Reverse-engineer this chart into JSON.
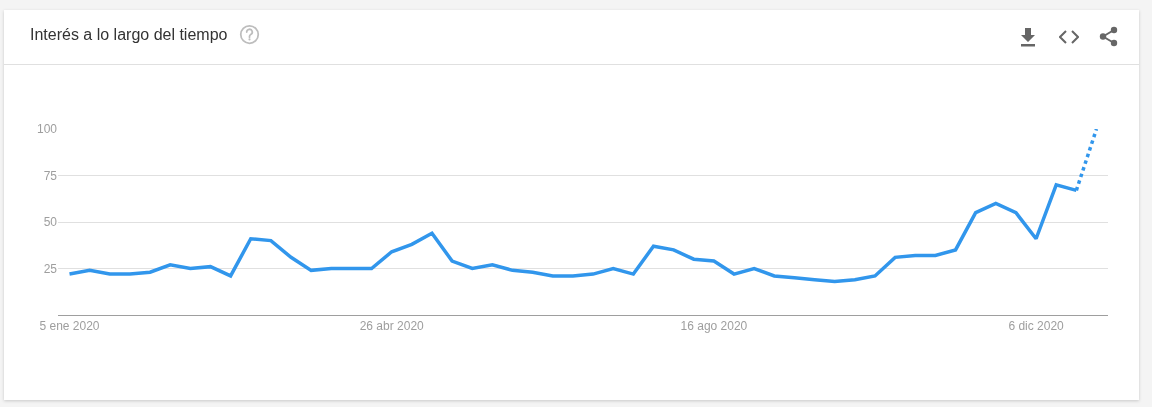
{
  "chart_data": {
    "type": "line",
    "title": "Interés a lo largo del tiempo",
    "x": [
      "2020-01-05",
      "2020-01-12",
      "2020-01-19",
      "2020-01-26",
      "2020-02-02",
      "2020-02-09",
      "2020-02-16",
      "2020-02-23",
      "2020-03-01",
      "2020-03-08",
      "2020-03-15",
      "2020-03-22",
      "2020-03-29",
      "2020-04-05",
      "2020-04-12",
      "2020-04-19",
      "2020-04-26",
      "2020-05-03",
      "2020-05-10",
      "2020-05-17",
      "2020-05-24",
      "2020-05-31",
      "2020-06-07",
      "2020-06-14",
      "2020-06-21",
      "2020-06-28",
      "2020-07-05",
      "2020-07-12",
      "2020-07-19",
      "2020-07-26",
      "2020-08-02",
      "2020-08-09",
      "2020-08-16",
      "2020-08-23",
      "2020-08-30",
      "2020-09-06",
      "2020-09-13",
      "2020-09-20",
      "2020-09-27",
      "2020-10-04",
      "2020-10-11",
      "2020-10-18",
      "2020-10-25",
      "2020-11-01",
      "2020-11-08",
      "2020-11-15",
      "2020-11-22",
      "2020-11-29",
      "2020-12-06",
      "2020-12-13",
      "2020-12-20",
      "2020-12-27"
    ],
    "series": [
      {
        "color": "#3196ec",
        "values": [
          22,
          24,
          22,
          22,
          23,
          27,
          25,
          26,
          21,
          41,
          40,
          31,
          24,
          25,
          25,
          25,
          34,
          38,
          44,
          29,
          25,
          27,
          24,
          23,
          21,
          21,
          22,
          25,
          22,
          37,
          35,
          30,
          29,
          22,
          25,
          21,
          20,
          19,
          18,
          19,
          21,
          31,
          32,
          32,
          35,
          55,
          60,
          55,
          41,
          70,
          67,
          null
        ]
      },
      {
        "color": "#3196ec",
        "line_style": "dotted",
        "values": [
          null,
          null,
          null,
          null,
          null,
          null,
          null,
          null,
          null,
          null,
          null,
          null,
          null,
          null,
          null,
          null,
          null,
          null,
          null,
          null,
          null,
          null,
          null,
          null,
          null,
          null,
          null,
          null,
          null,
          null,
          null,
          null,
          null,
          null,
          null,
          null,
          null,
          null,
          null,
          null,
          null,
          null,
          null,
          null,
          null,
          null,
          null,
          null,
          null,
          null,
          67,
          100
        ]
      }
    ],
    "xlim": [
      "2020-01-01",
      "2020-12-31"
    ],
    "xticks": [
      {
        "value": "2020-01-05",
        "label": "5 ene 2020"
      },
      {
        "value": "2020-04-26",
        "label": "26 abr 2020"
      },
      {
        "value": "2020-08-16",
        "label": "16 ago 2020"
      },
      {
        "value": "2020-12-06",
        "label": "6 dic 2020"
      }
    ],
    "ylim": [
      0,
      100
    ],
    "yticks": [
      25,
      50,
      75,
      100
    ],
    "grid": "y",
    "line_style": "solid"
  }
}
